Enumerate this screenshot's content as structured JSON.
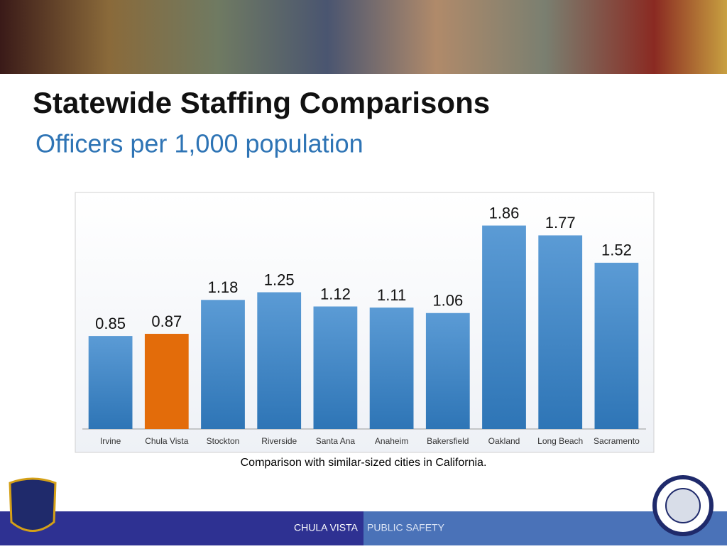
{
  "slide": {
    "title": "Statewide Staffing Comparisons",
    "subtitle": "Officers per 1,000 population",
    "caption": "Comparison with similar-sized cities in California.",
    "footer_left": "CHULA VISTA",
    "footer_right": "PUBLIC SAFETY"
  },
  "chart_data": {
    "type": "bar",
    "categories": [
      "Irvine",
      "Chula Vista",
      "Stockton",
      "Riverside",
      "Santa Ana",
      "Anaheim",
      "Bakersfield",
      "Oakland",
      "Long Beach",
      "Sacramento"
    ],
    "values": [
      0.85,
      0.87,
      1.18,
      1.25,
      1.12,
      1.11,
      1.06,
      1.86,
      1.77,
      1.52
    ],
    "colors": [
      "#5b9bd5",
      "#e36c0a",
      "#5b9bd5",
      "#5b9bd5",
      "#5b9bd5",
      "#5b9bd5",
      "#5b9bd5",
      "#5b9bd5",
      "#5b9bd5",
      "#5b9bd5"
    ],
    "ylim": [
      0,
      2
    ]
  }
}
